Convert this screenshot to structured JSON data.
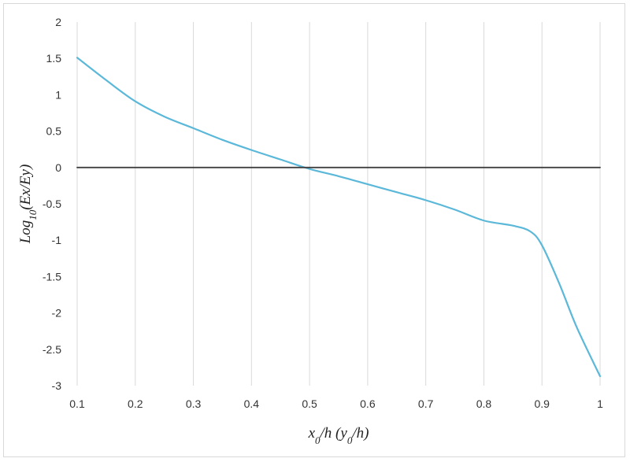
{
  "chart_data": {
    "type": "line",
    "xlabel_parts": [
      {
        "text": "x",
        "sub": false
      },
      {
        "text": "0",
        "sub": true
      },
      {
        "text": "/h (y",
        "sub": false
      },
      {
        "text": "0",
        "sub": true
      },
      {
        "text": "/h)",
        "sub": false
      }
    ],
    "ylabel_parts": [
      {
        "text": "Log",
        "sub": false
      },
      {
        "text": "10",
        "sub": true
      },
      {
        "text": "(Ex/Ey)",
        "sub": false
      }
    ],
    "xlim": [
      0.1,
      1.0
    ],
    "ylim": [
      -3,
      2
    ],
    "x_ticks": [
      0.1,
      0.2,
      0.3,
      0.4,
      0.5,
      0.6,
      0.7,
      0.8,
      0.9,
      1.0
    ],
    "x_tick_labels": [
      "0.1",
      "0.2",
      "0.3",
      "0.4",
      "0.5",
      "0.6",
      "0.7",
      "0.8",
      "0.9",
      "1"
    ],
    "y_ticks": [
      2,
      1.5,
      1,
      0.5,
      0,
      -0.5,
      -1,
      -1.5,
      -2,
      -2.5,
      -3
    ],
    "y_tick_labels": [
      "2",
      "1.5",
      "1",
      "0.5",
      "0",
      "-0.5",
      "-1",
      "-1.5",
      "-2",
      "-2.5",
      "-3"
    ],
    "grid": "vertical",
    "series": [
      {
        "color": "#5bb8d9",
        "x": [
          0.1,
          0.15,
          0.2,
          0.25,
          0.3,
          0.35,
          0.4,
          0.45,
          0.5,
          0.55,
          0.6,
          0.65,
          0.7,
          0.75,
          0.8,
          0.85,
          0.88,
          0.9,
          0.93,
          0.96,
          1.0
        ],
        "y": [
          1.51,
          1.2,
          0.91,
          0.7,
          0.54,
          0.38,
          0.24,
          0.11,
          -0.02,
          -0.12,
          -0.23,
          -0.34,
          -0.45,
          -0.58,
          -0.73,
          -0.8,
          -0.88,
          -1.07,
          -1.6,
          -2.2,
          -2.87
        ]
      },
      {
        "color": "#404040",
        "x": [
          0.1,
          1.0
        ],
        "y": [
          0,
          0
        ]
      }
    ]
  }
}
